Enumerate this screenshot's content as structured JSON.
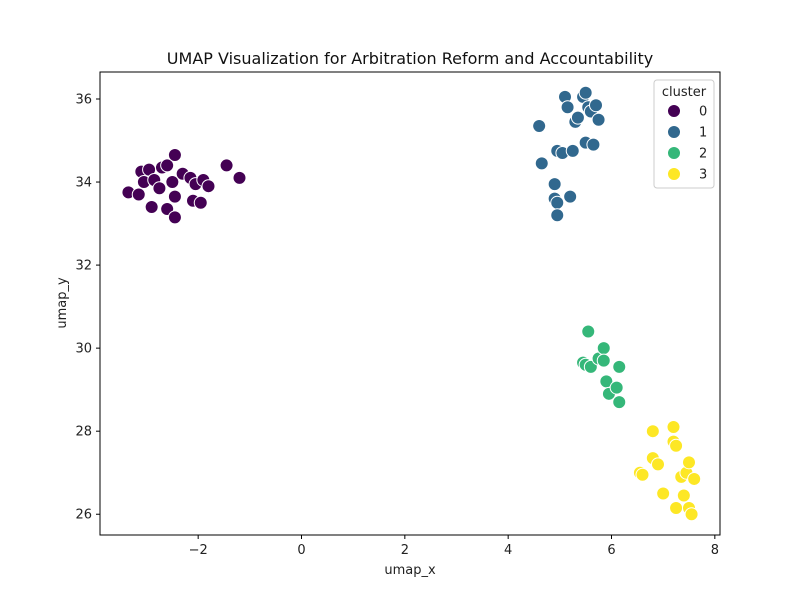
{
  "chart_data": {
    "type": "scatter",
    "title": "UMAP Visualization for Arbitration Reform and Accountability",
    "xlabel": "umap_x",
    "ylabel": "umap_y",
    "xlim": [
      -3.9,
      8.1
    ],
    "ylim": [
      25.5,
      36.65
    ],
    "xticks": [
      -2,
      0,
      2,
      4,
      6,
      8
    ],
    "yticks": [
      26,
      28,
      30,
      32,
      34,
      36
    ],
    "xtick_labels": [
      "−2",
      "0",
      "2",
      "4",
      "6",
      "8"
    ],
    "ytick_labels": [
      "26",
      "28",
      "30",
      "32",
      "34",
      "36"
    ],
    "grid": false,
    "legend": {
      "title": "cluster",
      "placement": "top-right",
      "entries": [
        "0",
        "1",
        "2",
        "3"
      ]
    },
    "series": [
      {
        "name": "0",
        "color": "#440154",
        "points": [
          [
            -3.35,
            33.75
          ],
          [
            -3.1,
            34.25
          ],
          [
            -3.15,
            33.7
          ],
          [
            -3.05,
            34.0
          ],
          [
            -2.95,
            34.3
          ],
          [
            -2.9,
            33.4
          ],
          [
            -2.85,
            34.05
          ],
          [
            -2.75,
            33.85
          ],
          [
            -2.7,
            34.35
          ],
          [
            -2.6,
            33.35
          ],
          [
            -2.6,
            34.4
          ],
          [
            -2.5,
            34.0
          ],
          [
            -2.45,
            34.65
          ],
          [
            -2.45,
            33.65
          ],
          [
            -2.45,
            33.15
          ],
          [
            -2.3,
            34.2
          ],
          [
            -2.15,
            34.1
          ],
          [
            -2.1,
            33.55
          ],
          [
            -2.05,
            33.95
          ],
          [
            -1.95,
            33.5
          ],
          [
            -1.9,
            34.05
          ],
          [
            -1.8,
            33.9
          ],
          [
            -1.45,
            34.4
          ],
          [
            -1.2,
            34.1
          ]
        ]
      },
      {
        "name": "1",
        "color": "#31688e",
        "points": [
          [
            4.6,
            35.35
          ],
          [
            4.65,
            34.45
          ],
          [
            4.9,
            33.95
          ],
          [
            4.9,
            33.6
          ],
          [
            4.95,
            34.75
          ],
          [
            4.95,
            33.5
          ],
          [
            4.95,
            33.2
          ],
          [
            5.05,
            34.7
          ],
          [
            5.1,
            36.05
          ],
          [
            5.15,
            35.8
          ],
          [
            5.2,
            33.65
          ],
          [
            5.25,
            34.75
          ],
          [
            5.3,
            35.45
          ],
          [
            5.35,
            35.55
          ],
          [
            5.45,
            36.05
          ],
          [
            5.5,
            34.95
          ],
          [
            5.5,
            36.15
          ],
          [
            5.55,
            35.8
          ],
          [
            5.6,
            35.7
          ],
          [
            5.65,
            34.9
          ],
          [
            5.7,
            35.85
          ],
          [
            5.75,
            35.5
          ]
        ]
      },
      {
        "name": "2",
        "color": "#35b779",
        "points": [
          [
            5.45,
            29.65
          ],
          [
            5.5,
            29.6
          ],
          [
            5.55,
            30.4
          ],
          [
            5.6,
            29.55
          ],
          [
            5.75,
            29.75
          ],
          [
            5.85,
            30.0
          ],
          [
            5.85,
            29.7
          ],
          [
            5.9,
            29.2
          ],
          [
            5.95,
            28.9
          ],
          [
            6.1,
            29.05
          ],
          [
            6.15,
            29.55
          ],
          [
            6.15,
            28.7
          ]
        ]
      },
      {
        "name": "3",
        "color": "#fde725",
        "points": [
          [
            6.55,
            27.0
          ],
          [
            6.6,
            26.95
          ],
          [
            6.8,
            28.0
          ],
          [
            6.8,
            27.35
          ],
          [
            6.9,
            27.2
          ],
          [
            7.0,
            26.5
          ],
          [
            7.2,
            28.1
          ],
          [
            7.2,
            27.75
          ],
          [
            7.25,
            27.65
          ],
          [
            7.25,
            26.15
          ],
          [
            7.35,
            26.9
          ],
          [
            7.4,
            26.45
          ],
          [
            7.45,
            27.0
          ],
          [
            7.5,
            27.25
          ],
          [
            7.5,
            26.15
          ],
          [
            7.55,
            26.0
          ],
          [
            7.6,
            26.85
          ]
        ]
      }
    ]
  }
}
